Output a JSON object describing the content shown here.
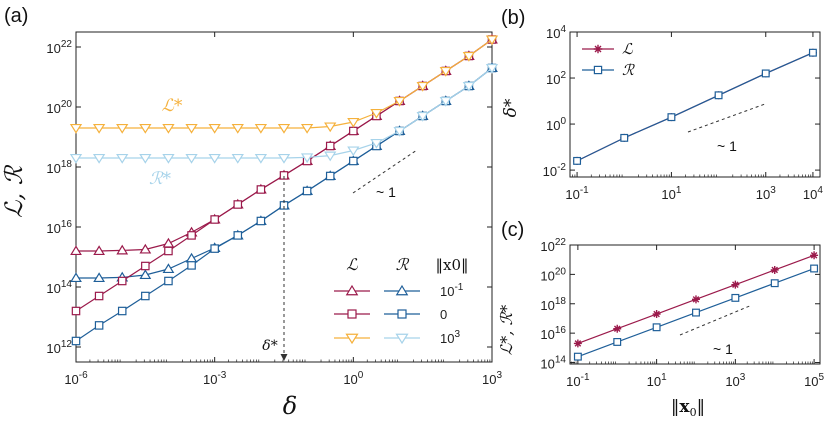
{
  "colors": {
    "red": "#9b1a4b",
    "blue": "#1f5f99",
    "orange": "#f5b13c",
    "lightblue": "#a7d3ea",
    "axis": "#222222",
    "annotation": "#333333"
  },
  "chart_data": [
    {
      "id": "a",
      "panel_label": "(a)",
      "type": "line",
      "xscale": "log",
      "yscale": "log",
      "xlabel": "δ",
      "ylabel": "ℒ, ℛ",
      "xlim_exp": [
        -6,
        3
      ],
      "ylim_exp": [
        11.5,
        22.5
      ],
      "xticks": [
        {
          "exp": -6,
          "label": "10",
          "sup": "-6"
        },
        {
          "exp": -3,
          "label": "10",
          "sup": "-3"
        },
        {
          "exp": 0,
          "label": "10",
          "sup": "0"
        },
        {
          "exp": 3,
          "label": "10",
          "sup": "3"
        }
      ],
      "yticks": [
        {
          "exp": 12,
          "label": "10",
          "sup": "12"
        },
        {
          "exp": 14,
          "label": "10",
          "sup": "14"
        },
        {
          "exp": 16,
          "label": "10",
          "sup": "16"
        },
        {
          "exp": 18,
          "label": "10",
          "sup": "18"
        },
        {
          "exp": 20,
          "label": "10",
          "sup": "20"
        },
        {
          "exp": 22,
          "label": "10",
          "sup": "22"
        }
      ],
      "x_exp": [
        -6,
        -5.5,
        -5,
        -4.5,
        -4,
        -3.5,
        -3,
        -2.5,
        -2,
        -1.5,
        -1,
        -0.5,
        0,
        0.5,
        1,
        1.5,
        2,
        2.5,
        3
      ],
      "series": [
        {
          "name": "ℒ, ‖x0‖=10^-1",
          "color_key": "red",
          "marker": "triangle-up",
          "log10_values": [
            15.2,
            15.2,
            15.22,
            15.25,
            15.45,
            15.82,
            16.25,
            16.75,
            17.25,
            17.72,
            18.2,
            18.7,
            19.2,
            19.7,
            20.2,
            20.7,
            21.2,
            21.7,
            22.25
          ]
        },
        {
          "name": "ℛ, ‖x0‖=10^-1",
          "color_key": "blue",
          "marker": "triangle-up",
          "log10_values": [
            14.3,
            14.3,
            14.32,
            14.4,
            14.6,
            14.95,
            15.3,
            15.72,
            16.2,
            16.72,
            17.2,
            17.7,
            18.2,
            18.7,
            19.2,
            19.7,
            20.2,
            20.7,
            21.3
          ]
        },
        {
          "name": "ℒ, ‖x0‖=0",
          "color_key": "red",
          "marker": "square",
          "log10_values": [
            13.2,
            13.7,
            14.2,
            14.7,
            15.2,
            15.72,
            16.25,
            16.75,
            17.25,
            17.72,
            18.2,
            18.7,
            19.2,
            19.7,
            20.2,
            20.7,
            21.2,
            21.7,
            22.25
          ]
        },
        {
          "name": "ℛ, ‖x0‖=0",
          "color_key": "blue",
          "marker": "square",
          "log10_values": [
            12.2,
            12.72,
            13.2,
            13.7,
            14.2,
            14.72,
            15.28,
            15.72,
            16.2,
            16.72,
            17.2,
            17.7,
            18.2,
            18.7,
            19.2,
            19.7,
            20.2,
            20.7,
            21.3
          ]
        },
        {
          "name": "ℒ, ‖x0‖=10^3",
          "color_key": "orange",
          "marker": "triangle-down",
          "log10_values": [
            19.3,
            19.3,
            19.3,
            19.3,
            19.3,
            19.3,
            19.3,
            19.3,
            19.3,
            19.3,
            19.3,
            19.35,
            19.5,
            19.8,
            20.2,
            20.7,
            21.2,
            21.7,
            22.25
          ]
        },
        {
          "name": "ℛ, ‖x0‖=10^3",
          "color_key": "lightblue",
          "marker": "triangle-down",
          "log10_values": [
            18.3,
            18.3,
            18.3,
            18.3,
            18.3,
            18.3,
            18.3,
            18.3,
            18.3,
            18.3,
            18.32,
            18.38,
            18.55,
            18.8,
            19.2,
            19.7,
            20.2,
            20.7,
            21.3
          ]
        }
      ],
      "series_labels": {
        "lstar": "ℒ*",
        "rstar": "ℛ*"
      },
      "slope_label": "~ 1",
      "delta_star": {
        "label": "δ*",
        "x_exp": -1.5,
        "from_y_exp": 17.7
      },
      "legend": {
        "header_L": "ℒ",
        "header_R": "ℛ",
        "header_x0": "‖x0‖",
        "rows": [
          {
            "label": "10",
            "sup": "-1"
          },
          {
            "label": "0",
            "sup": ""
          },
          {
            "label": "10",
            "sup": "3"
          }
        ]
      }
    },
    {
      "id": "b",
      "panel_label": "(b)",
      "type": "line",
      "xscale": "log",
      "yscale": "log",
      "xlabel": "",
      "ylabel": "δ*",
      "xlim_exp": [
        -1.15,
        4.15
      ],
      "ylim_exp": [
        -2.3,
        4
      ],
      "xticks": [
        {
          "exp": -1,
          "label": "10",
          "sup": "-1"
        },
        {
          "exp": 1,
          "label": "10",
          "sup": "1"
        },
        {
          "exp": 3,
          "label": "10",
          "sup": "3"
        },
        {
          "exp": 4,
          "label": "10",
          "sup": "4"
        }
      ],
      "yticks": [
        {
          "exp": -2,
          "label": "10",
          "sup": "-2"
        },
        {
          "exp": 0,
          "label": "10",
          "sup": "0"
        },
        {
          "exp": 2,
          "label": "10",
          "sup": "2"
        },
        {
          "exp": 4,
          "label": "10",
          "sup": "4"
        }
      ],
      "x_exp": [
        -1,
        0,
        1,
        2,
        3,
        4
      ],
      "series": [
        {
          "name": "ℒ",
          "color_key": "red",
          "marker": "asterisk",
          "log10_values": [
            -1.6,
            -0.6,
            0.3,
            1.25,
            2.2,
            3.1
          ]
        },
        {
          "name": "ℛ",
          "color_key": "blue",
          "marker": "square",
          "log10_values": [
            -1.6,
            -0.6,
            0.3,
            1.25,
            2.2,
            3.1
          ]
        }
      ],
      "slope_label": "~ 1",
      "legend": {
        "entries": [
          "ℒ",
          "ℛ"
        ]
      }
    },
    {
      "id": "c",
      "panel_label": "(c)",
      "type": "line",
      "xscale": "log",
      "yscale": "log",
      "xlabel": "‖x0‖",
      "ylabel": "ℒ*, ℛ*",
      "xlim_exp": [
        -1.2,
        5.15
      ],
      "ylim_exp": [
        13.9,
        22
      ],
      "xticks": [
        {
          "exp": -1,
          "label": "10",
          "sup": "-1"
        },
        {
          "exp": 1,
          "label": "10",
          "sup": "1"
        },
        {
          "exp": 3,
          "label": "10",
          "sup": "3"
        },
        {
          "exp": 5,
          "label": "10",
          "sup": "5"
        }
      ],
      "yticks": [
        {
          "exp": 14,
          "label": "10",
          "sup": "14"
        },
        {
          "exp": 16,
          "label": "10",
          "sup": "16"
        },
        {
          "exp": 18,
          "label": "10",
          "sup": "18"
        },
        {
          "exp": 20,
          "label": "10",
          "sup": "20"
        },
        {
          "exp": 22,
          "label": "10",
          "sup": "22"
        }
      ],
      "x_exp": [
        -1,
        0,
        1,
        2,
        3,
        4,
        5
      ],
      "series": [
        {
          "name": "ℒ*",
          "color_key": "red",
          "marker": "asterisk",
          "log10_values": [
            15.3,
            16.3,
            17.3,
            18.3,
            19.3,
            20.3,
            21.3
          ]
        },
        {
          "name": "ℛ*",
          "color_key": "blue",
          "marker": "square",
          "log10_values": [
            14.4,
            15.4,
            16.4,
            17.4,
            18.4,
            19.4,
            20.4
          ]
        }
      ],
      "slope_label": "~ 1"
    }
  ]
}
